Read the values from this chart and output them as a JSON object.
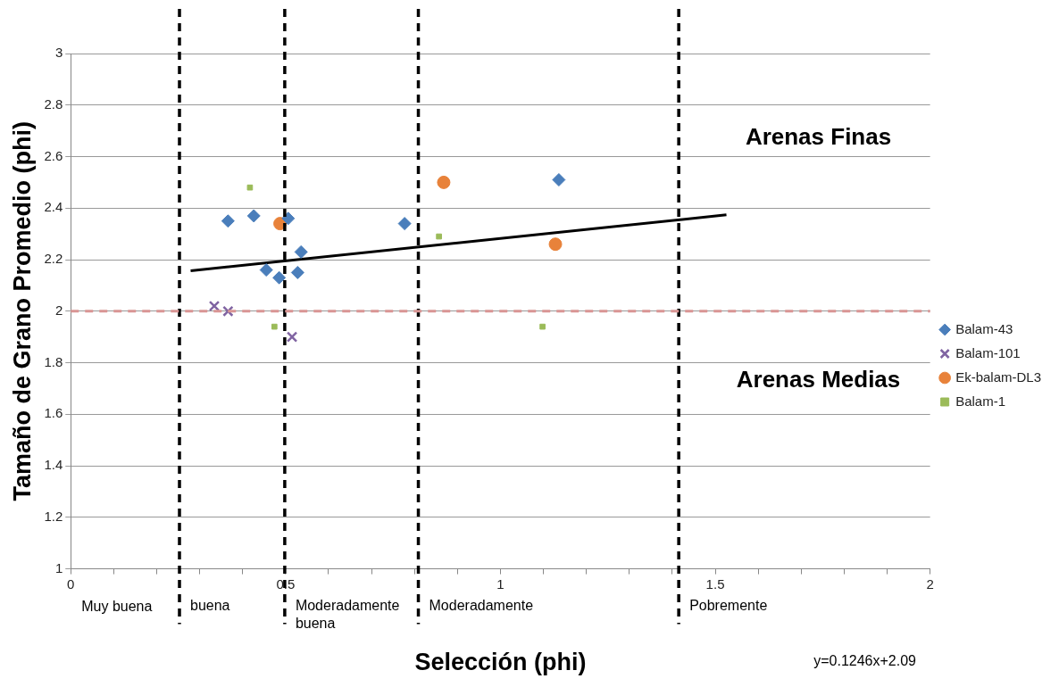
{
  "chart_data": {
    "type": "scatter",
    "xlabel": "Selección (phi)",
    "ylabel": "Tamaño de Grano Promedio (phi)",
    "xlim": [
      0,
      2
    ],
    "ylim": [
      1,
      3
    ],
    "xticks": [
      0,
      {
        "value": 0.1,
        "label": null
      },
      {
        "value": 0.2,
        "label": null
      },
      {
        "value": 0.3,
        "label": null
      },
      {
        "value": 0.4,
        "label": null
      },
      0.5,
      {
        "value": 0.6,
        "label": null
      },
      {
        "value": 0.7,
        "label": null
      },
      {
        "value": 0.8,
        "label": null
      },
      {
        "value": 0.9,
        "label": null
      },
      1,
      {
        "value": 1.1,
        "label": null
      },
      {
        "value": 1.2,
        "label": null
      },
      {
        "value": 1.3,
        "label": null
      },
      {
        "value": 1.4,
        "label": null
      },
      1.5,
      {
        "value": 1.6,
        "label": null
      },
      {
        "value": 1.7,
        "label": null
      },
      {
        "value": 1.8,
        "label": null
      },
      {
        "value": 1.9,
        "label": null
      },
      2
    ],
    "yticks": [
      1,
      1.2,
      1.4,
      1.6,
      1.8,
      2,
      2.2,
      2.4,
      2.6,
      2.8,
      3
    ],
    "grid": "y",
    "legend": "right",
    "series": [
      {
        "name": "Balam-43",
        "color": "#4a7ebb",
        "marker": "diamond",
        "x": [
          0.366,
          0.426,
          0.506,
          0.536,
          0.455,
          0.485,
          0.528,
          0.777,
          1.136
        ],
        "values": [
          2.35,
          2.37,
          2.36,
          2.23,
          2.16,
          2.13,
          2.15,
          2.34,
          2.51
        ]
      },
      {
        "name": "Balam-101",
        "color": "#8064a2",
        "marker": "cross",
        "x": [
          0.334,
          0.366,
          0.515
        ],
        "values": [
          2.02,
          2.0,
          1.9
        ]
      },
      {
        "name": "Ek-balam-DL3",
        "color": "#e8823a",
        "marker": "circle",
        "x": [
          0.487,
          0.868,
          1.128
        ],
        "values": [
          2.34,
          2.5,
          2.26
        ]
      },
      {
        "name": "Balam-1",
        "color": "#9bbb59",
        "marker": "square",
        "x": [
          0.417,
          0.474,
          0.857,
          1.098
        ],
        "values": [
          2.48,
          1.94,
          2.29,
          1.94
        ]
      },
      {
        "type": "line",
        "color": "#000000",
        "marker": "none",
        "x": [
          0.279,
          1.526
        ],
        "values": [
          2.157,
          2.374
        ]
      }
    ],
    "ref_lines": [
      {
        "axis": "x",
        "value": 0.253,
        "color": "#000000",
        "line_style": "dashed",
        "label": "buena"
      },
      {
        "axis": "x",
        "value": 0.498,
        "color": "#000000",
        "line_style": "dashed",
        "label": "Moderadamente buena"
      },
      {
        "axis": "x",
        "value": 0.809,
        "color": "#000000",
        "line_style": "dashed",
        "label": "Moderadamente"
      },
      {
        "axis": "x",
        "value": 1.415,
        "color": "#000000",
        "line_style": "dashed",
        "label": "Pobremente"
      },
      {
        "axis": "y",
        "value": 2.0,
        "color": "#d99594",
        "line_style": "dashed"
      }
    ],
    "annotations": [
      "Arenas Finas",
      "Arenas Medias",
      "Muy buena",
      "y=0.1246x+2.09"
    ]
  }
}
